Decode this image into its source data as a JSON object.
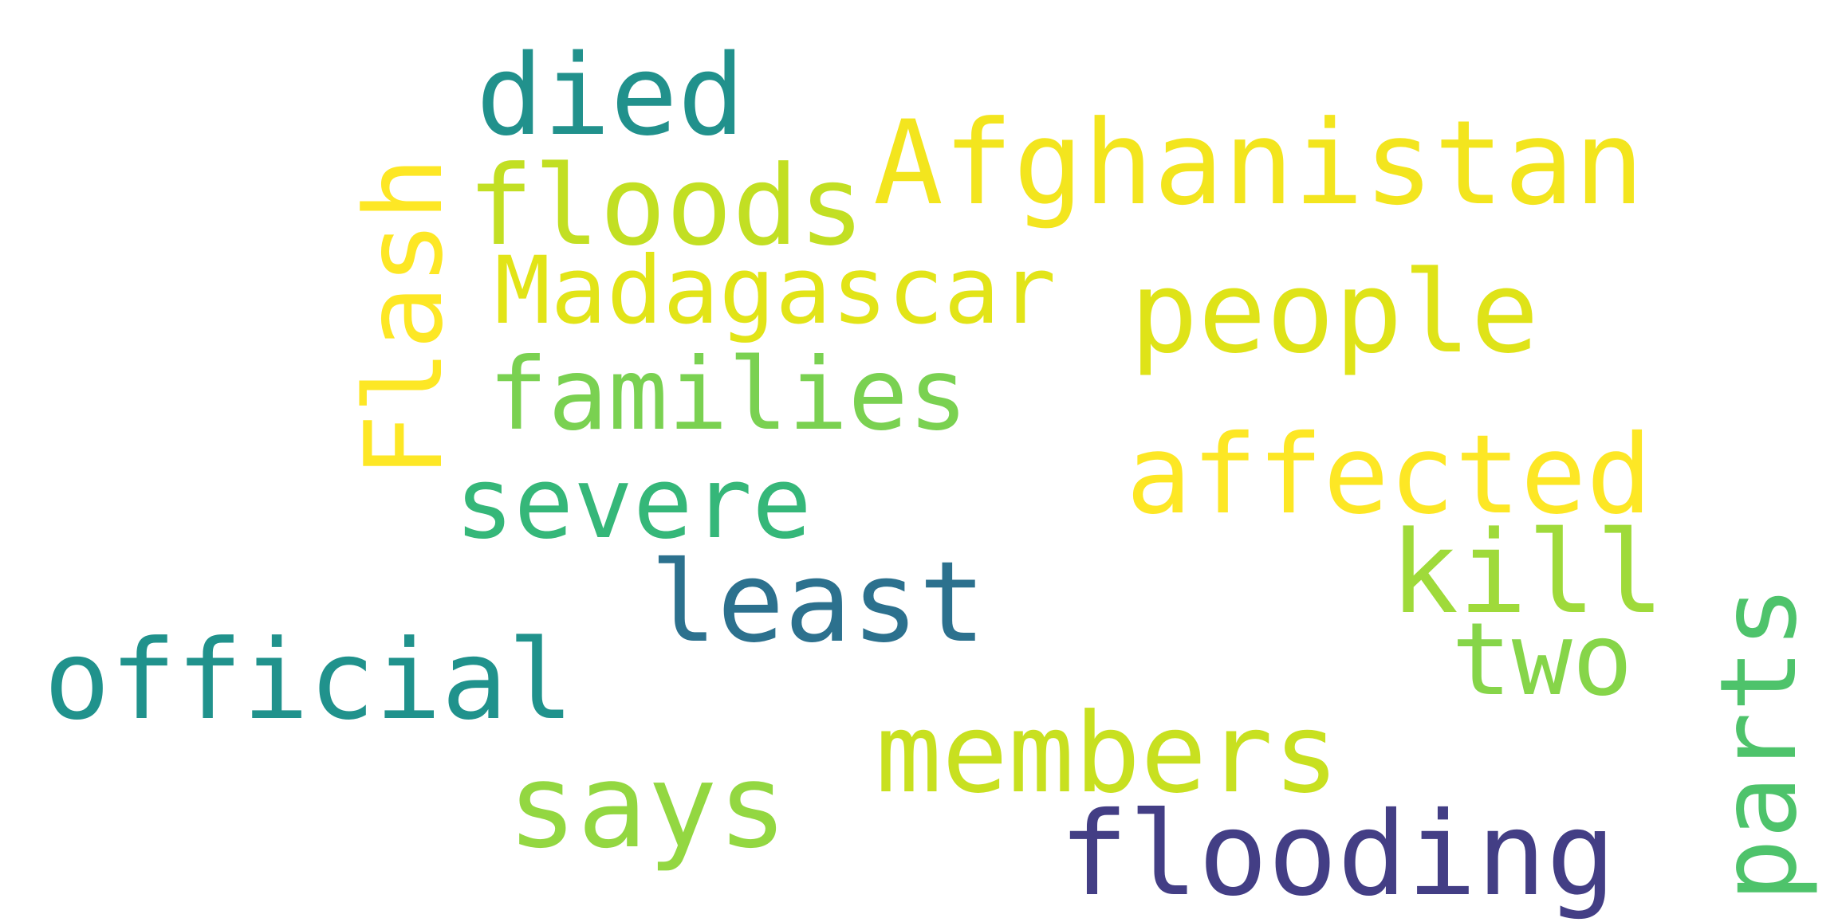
{
  "words": [
    {
      "key": "died",
      "text": "died",
      "color": "#21918c"
    },
    {
      "key": "afghanistan",
      "text": "Afghanistan",
      "color": "#f3e51e"
    },
    {
      "key": "floods",
      "text": "floods",
      "color": "#c2df23"
    },
    {
      "key": "flash",
      "text": "Flash",
      "color": "#fde725"
    },
    {
      "key": "madagascar",
      "text": "Madagascar",
      "color": "#e2e418"
    },
    {
      "key": "people",
      "text": "people",
      "color": "#dfe318"
    },
    {
      "key": "families",
      "text": "families",
      "color": "#7ad151"
    },
    {
      "key": "affected",
      "text": "affected",
      "color": "#fde725"
    },
    {
      "key": "severe",
      "text": "severe",
      "color": "#35b779"
    },
    {
      "key": "kill",
      "text": "kill",
      "color": "#9fda3a"
    },
    {
      "key": "least",
      "text": "least",
      "color": "#2c718e"
    },
    {
      "key": "two",
      "text": "two",
      "color": "#86d549"
    },
    {
      "key": "parts",
      "text": "parts",
      "color": "#4ec36b"
    },
    {
      "key": "official",
      "text": "official",
      "color": "#20928c"
    },
    {
      "key": "members",
      "text": "members",
      "color": "#c8e020"
    },
    {
      "key": "says",
      "text": "says",
      "color": "#93d741"
    },
    {
      "key": "flooding",
      "text": "flooding",
      "color": "#433e85"
    }
  ]
}
